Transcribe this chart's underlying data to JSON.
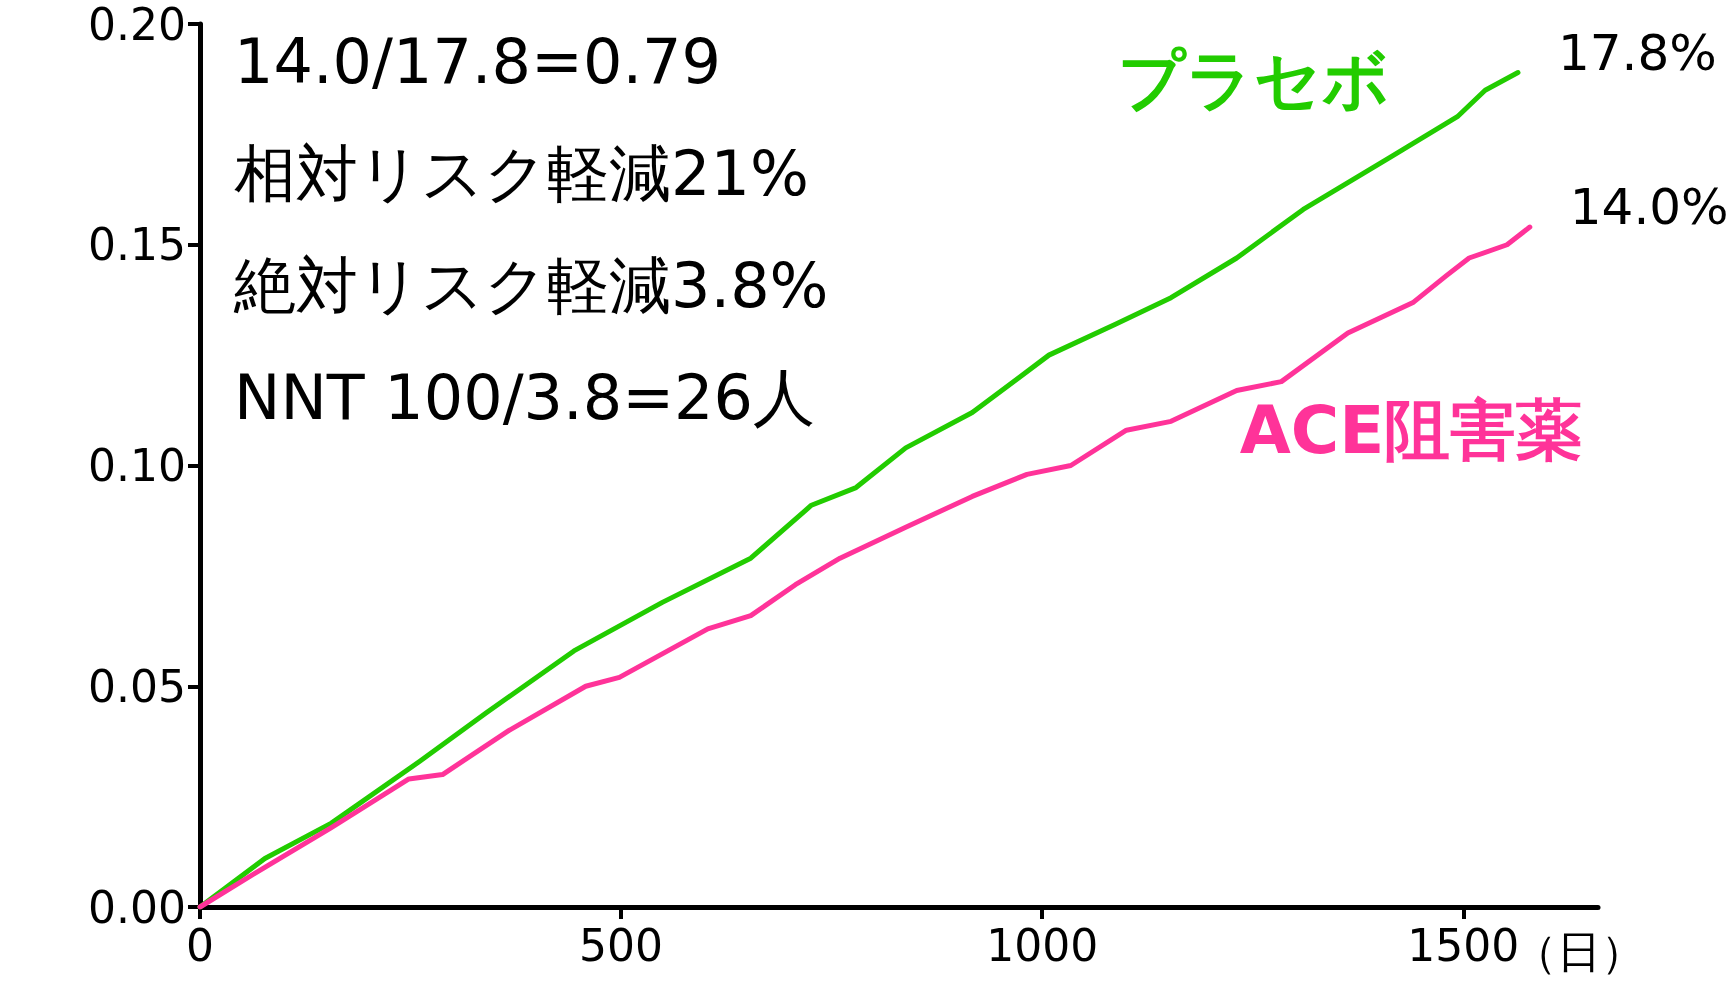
{
  "chart_data": {
    "type": "line",
    "xlabel": "（日）",
    "annotations": [
      "14.0/17.8=0.79",
      "相対リスク軽減21%",
      "絶対リスク軽減3.8%",
      "NNT 100/3.8=26人",
      {
        "text": "17.8%",
        "x": 1565,
        "y": 0.189
      },
      {
        "text": "14.0%",
        "x": 1579,
        "y": 0.154
      }
    ],
    "series": [
      {
        "name": "プラセボ",
        "color": "#22cc00",
        "x": [
          0,
          77,
          156,
          261,
          340,
          444,
          549,
          654,
          726,
          779,
          838,
          917,
          1008,
          1087,
          1153,
          1231,
          1310,
          1415,
          1493,
          1526,
          1565
        ],
        "values": [
          0,
          0.011,
          0.019,
          0.033,
          0.044,
          0.058,
          0.069,
          0.079,
          0.091,
          0.095,
          0.104,
          0.112,
          0.125,
          0.132,
          0.138,
          0.147,
          0.158,
          0.17,
          0.179,
          0.185,
          0.189
        ]
      },
      {
        "name": "ACE阻害薬",
        "color": "#ff3399",
        "x": [
          0,
          77,
          156,
          248,
          288,
          367,
          458,
          498,
          603,
          654,
          707,
          760,
          838,
          917,
          982,
          1034,
          1100,
          1153,
          1231,
          1284,
          1363,
          1441,
          1480,
          1507,
          1552,
          1579
        ],
        "values": [
          0,
          0.009,
          0.018,
          0.029,
          0.03,
          0.04,
          0.05,
          0.052,
          0.063,
          0.066,
          0.073,
          0.079,
          0.086,
          0.093,
          0.098,
          0.1,
          0.108,
          0.11,
          0.117,
          0.119,
          0.13,
          0.137,
          0.143,
          0.147,
          0.15,
          0.154
        ]
      }
    ],
    "xlim": [
      0,
      1660
    ],
    "xticks": [
      0,
      500,
      1000,
      1500
    ],
    "ylim": [
      0,
      0.2
    ],
    "yticks": [
      {
        "value": 0,
        "label": "0.00"
      },
      {
        "value": 0.05,
        "label": "0.05"
      },
      {
        "value": 0.1,
        "label": "0.10"
      },
      {
        "value": 0.15,
        "label": "0.15"
      },
      {
        "value": 0.2,
        "label": "0.20"
      }
    ],
    "grid": false,
    "legend": false,
    "marker": "none",
    "line_style": "solid"
  }
}
